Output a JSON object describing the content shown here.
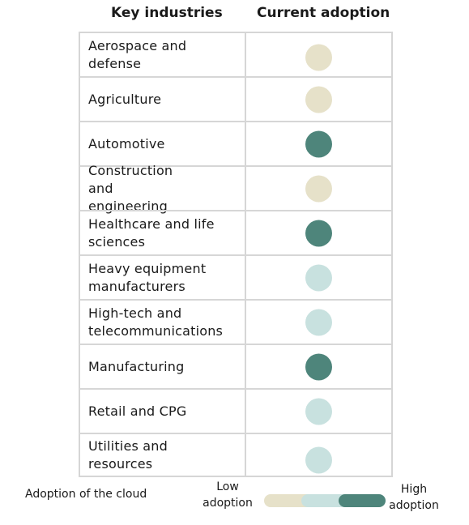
{
  "headers": {
    "industries": "Key industries",
    "adoption": "Current adoption"
  },
  "colors": {
    "low": "#e6e1c9",
    "medium": "#c8e1df",
    "high": "#4e857b"
  },
  "chart_data": {
    "type": "table",
    "columns": [
      "Key industries",
      "Current adoption"
    ],
    "rows": [
      {
        "industry": "Aerospace and defense",
        "adoption": "low"
      },
      {
        "industry": "Agriculture",
        "adoption": "low"
      },
      {
        "industry": "Automotive",
        "adoption": "high"
      },
      {
        "industry": "Construction and engineering",
        "adoption": "low"
      },
      {
        "industry": "Healthcare and life sciences",
        "adoption": "high"
      },
      {
        "industry": "Heavy equipment manufacturers",
        "adoption": "medium"
      },
      {
        "industry": "High-tech and telecommunications",
        "adoption": "medium"
      },
      {
        "industry": "Manufacturing",
        "adoption": "high"
      },
      {
        "industry": "Retail and CPG",
        "adoption": "medium"
      },
      {
        "industry": "Utilities and resources",
        "adoption": "medium"
      }
    ],
    "legend": {
      "title": "Adoption of the cloud",
      "low_label": "Low adoption",
      "high_label": "High adoption",
      "levels": [
        "low",
        "medium",
        "high"
      ]
    }
  }
}
